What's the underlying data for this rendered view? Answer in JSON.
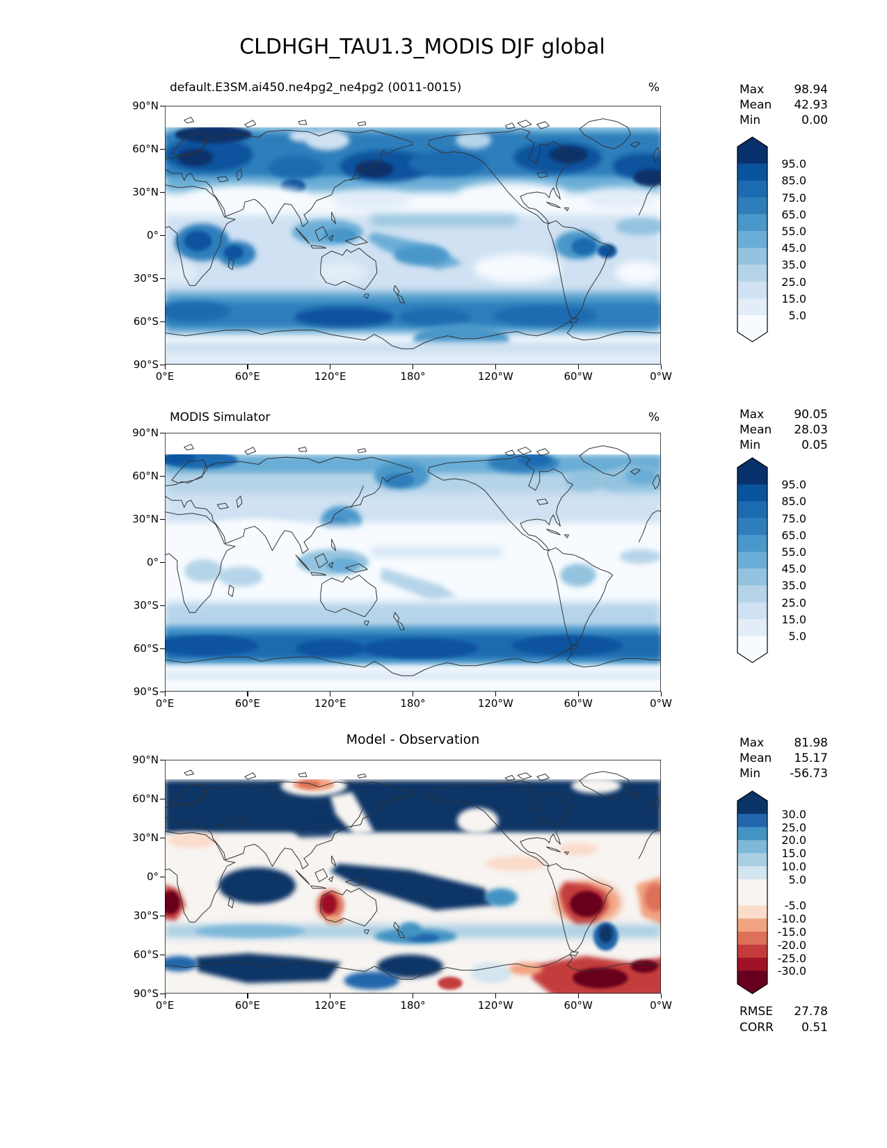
{
  "figure_title": "CLDHGH_TAU1.3_MODIS DJF global",
  "panels": [
    {
      "title": "default.E3SM.ai450.ne4pg2_ne4pg2 (0011-0015)",
      "units": "%",
      "stats": [
        {
          "label": "Max",
          "value": "98.94"
        },
        {
          "label": "Mean",
          "value": "42.93"
        },
        {
          "label": "Min",
          "value": "0.00"
        }
      ],
      "colorbar": {
        "ticks": [
          "95.0",
          "85.0",
          "75.0",
          "65.0",
          "55.0",
          "45.0",
          "35.0",
          "25.0",
          "15.0",
          "5.0"
        ]
      }
    },
    {
      "title": "MODIS Simulator",
      "units": "%",
      "stats": [
        {
          "label": "Max",
          "value": "90.05"
        },
        {
          "label": "Mean",
          "value": "28.03"
        },
        {
          "label": "Min",
          "value": "0.05"
        }
      ],
      "colorbar": {
        "ticks": [
          "95.0",
          "85.0",
          "75.0",
          "65.0",
          "55.0",
          "45.0",
          "35.0",
          "25.0",
          "15.0",
          "5.0"
        ]
      }
    },
    {
      "title": "Model - Observation",
      "units": "",
      "stats": [
        {
          "label": "Max",
          "value": "81.98"
        },
        {
          "label": "Mean",
          "value": "15.17"
        },
        {
          "label": "Min",
          "value": "-56.73"
        }
      ],
      "colorbar": {
        "ticks": [
          "30.0",
          "25.0",
          "20.0",
          "15.0",
          "10.0",
          "5.0",
          "-5.0",
          "-10.0",
          "-15.0",
          "-20.0",
          "-25.0",
          "-30.0"
        ]
      },
      "extra_stats": [
        {
          "label": "RMSE",
          "value": "27.78"
        },
        {
          "label": "CORR",
          "value": "0.51"
        }
      ]
    }
  ],
  "axes": {
    "x_tick_labels": [
      "0°E",
      "60°E",
      "120°E",
      "180°",
      "120°W",
      "60°W",
      "0°W"
    ],
    "y_tick_labels": [
      "90°N",
      "60°N",
      "30°N",
      "0°",
      "30°S",
      "60°S",
      "90°S"
    ]
  },
  "palettes": {
    "blues": [
      "#f7fbff",
      "#e2edf8",
      "#cfe1f2",
      "#b5d4e9",
      "#93c3de",
      "#6badd6",
      "#4a97c9",
      "#2e7ebc",
      "#1c6ab0",
      "#09539d",
      "#08306b"
    ],
    "rdbu": [
      "#0b3566",
      "#2166ac",
      "#4393c3",
      "#7db8d9",
      "#aacfe3",
      "#d3e5ef",
      "#f7f4f1",
      "#fbdcca",
      "#f2a482",
      "#dd7059",
      "#c43c3d",
      "#9e1127",
      "#67001f"
    ]
  },
  "chart_data": {
    "type": "heatmap",
    "title": "CLDHGH_TAU1.3_MODIS DJF global",
    "variable": "CLDHGH_TAU1.3_MODIS",
    "season": "DJF",
    "region": "global",
    "units": "%",
    "projection": "equirectangular (0°E to 0°W, 90°N to 90°S)",
    "x_axis": {
      "label": "longitude",
      "ticks": [
        "0°E",
        "60°E",
        "120°E",
        "180°",
        "120°W",
        "60°W",
        "0°W"
      ]
    },
    "y_axis": {
      "label": "latitude",
      "ticks": [
        "90°N",
        "60°N",
        "30°N",
        "0°",
        "30°S",
        "60°S",
        "90°S"
      ]
    },
    "panels": [
      {
        "name": "default.E3SM.ai450.ne4pg2_ne4pg2 (0011-0015)",
        "kind": "filled-contour map",
        "units": "%",
        "max": 98.94,
        "mean": 42.93,
        "min": 0.0,
        "contour_levels": [
          5,
          15,
          25,
          35,
          45,
          55,
          65,
          75,
          85,
          95
        ],
        "colormap": "Blues, extended both ends"
      },
      {
        "name": "MODIS Simulator",
        "kind": "filled-contour map",
        "units": "%",
        "max": 90.05,
        "mean": 28.03,
        "min": 0.05,
        "contour_levels": [
          5,
          15,
          25,
          35,
          45,
          55,
          65,
          75,
          85,
          95
        ],
        "colormap": "Blues, extended both ends"
      },
      {
        "name": "Model - Observation",
        "kind": "filled-contour difference map",
        "units": "%",
        "max": 81.98,
        "mean": 15.17,
        "min": -56.73,
        "rmse": 27.78,
        "corr": 0.51,
        "contour_levels": [
          -30,
          -25,
          -20,
          -15,
          -10,
          -5,
          5,
          10,
          15,
          20,
          25,
          30
        ],
        "colormap": "RdBu_r, extended both ends"
      }
    ]
  }
}
